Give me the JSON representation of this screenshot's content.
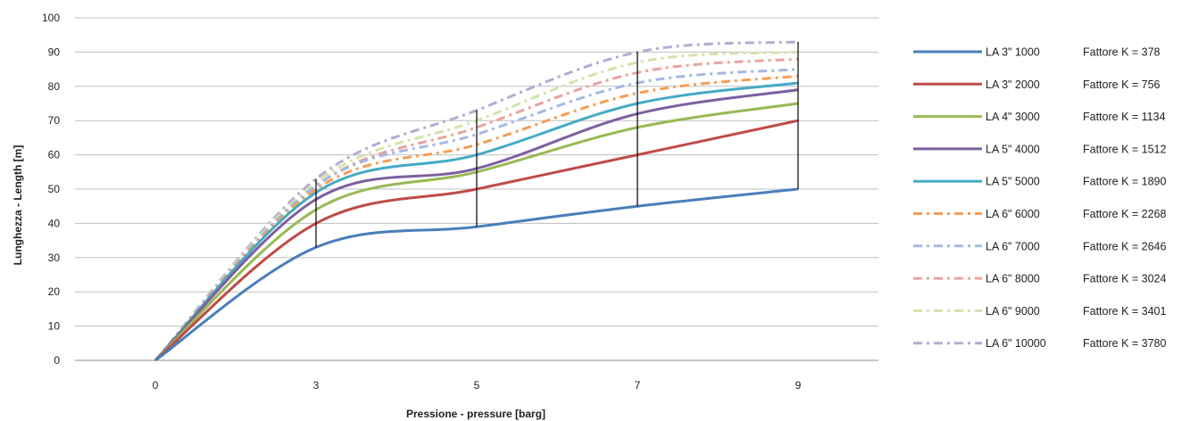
{
  "chart_data": {
    "type": "line",
    "xlabel": "Pressione - pressure [barg]",
    "ylabel": "Lunghezza - Length [m]",
    "x": [
      0,
      3,
      5,
      7,
      9
    ],
    "ylim": [
      0,
      100
    ],
    "yticks": [
      0,
      10,
      20,
      30,
      40,
      50,
      60,
      70,
      80,
      90,
      100
    ],
    "grid": true,
    "legend_position": "right",
    "series": [
      {
        "name": "LA 3\" 1000",
        "k_label": "Fattore K = 378",
        "color": "#4a7ebb",
        "style": "solid",
        "values": [
          0,
          33,
          39,
          45,
          50
        ]
      },
      {
        "name": "LA 3\" 2000",
        "k_label": "Fattore K = 756",
        "color": "#be4b48",
        "style": "solid",
        "values": [
          0,
          40,
          50,
          60,
          70
        ]
      },
      {
        "name": "LA 4\" 3000",
        "k_label": "Fattore K = 1134",
        "color": "#98b954",
        "style": "solid",
        "values": [
          0,
          44,
          55,
          68,
          75
        ]
      },
      {
        "name": "LA 5\" 4000",
        "k_label": "Fattore K = 1512",
        "color": "#7d60a0",
        "style": "solid",
        "values": [
          0,
          47,
          56,
          72,
          79
        ]
      },
      {
        "name": "LA 5\" 5000",
        "k_label": "Fattore K = 1890",
        "color": "#46aac5",
        "style": "solid",
        "values": [
          0,
          49,
          60,
          75,
          81
        ]
      },
      {
        "name": "LA 6\" 6000",
        "k_label": "Fattore K = 2268",
        "color": "#f59d56",
        "style": "dashdot",
        "values": [
          0,
          50,
          63,
          78,
          83
        ]
      },
      {
        "name": "LA 6\" 7000",
        "k_label": "Fattore K = 2646",
        "color": "#a5b8e3",
        "style": "dashdot",
        "values": [
          0,
          51,
          66,
          81,
          85
        ]
      },
      {
        "name": "LA 6\" 8000",
        "k_label": "Fattore K = 3024",
        "color": "#e9a3a0",
        "style": "dashdot",
        "values": [
          0,
          51,
          68,
          84,
          88
        ]
      },
      {
        "name": "LA 6\" 9000",
        "k_label": "Fattore K = 3401",
        "color": "#d1e4aa",
        "style": "dashdot",
        "values": [
          0,
          52,
          70,
          87,
          90
        ]
      },
      {
        "name": "LA 6\" 10000",
        "k_label": "Fattore K = 3780",
        "color": "#b9a8d2",
        "style": "dashdot",
        "values": [
          0,
          53,
          73,
          90,
          93
        ]
      }
    ],
    "drop_lines": [
      {
        "x": 3,
        "from": 33,
        "to": 53
      },
      {
        "x": 5,
        "from": 39,
        "to": 73
      },
      {
        "x": 7,
        "from": 45,
        "to": 90
      },
      {
        "x": 9,
        "from": 50,
        "to": 93
      }
    ]
  }
}
